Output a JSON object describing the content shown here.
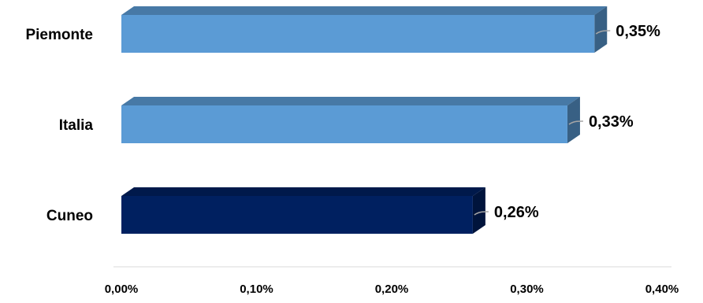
{
  "chart_data": {
    "type": "bar",
    "orientation": "horizontal",
    "style": "3d",
    "categories": [
      "Piemonte",
      "Italia",
      "Cuneo"
    ],
    "values": [
      0.35,
      0.33,
      0.26
    ],
    "value_labels": [
      "0,35%",
      "0,33%",
      "0,26%"
    ],
    "colors": [
      "#5b9bd5",
      "#5b9bd5",
      "#002060"
    ],
    "xlim": [
      0,
      0.4
    ],
    "x_ticks": [
      0.0,
      0.1,
      0.2,
      0.3,
      0.4
    ],
    "x_tick_labels": [
      "0,00%",
      "0,10%",
      "0,20%",
      "0,30%",
      "0,40%"
    ],
    "grid": false,
    "legend": "none"
  }
}
